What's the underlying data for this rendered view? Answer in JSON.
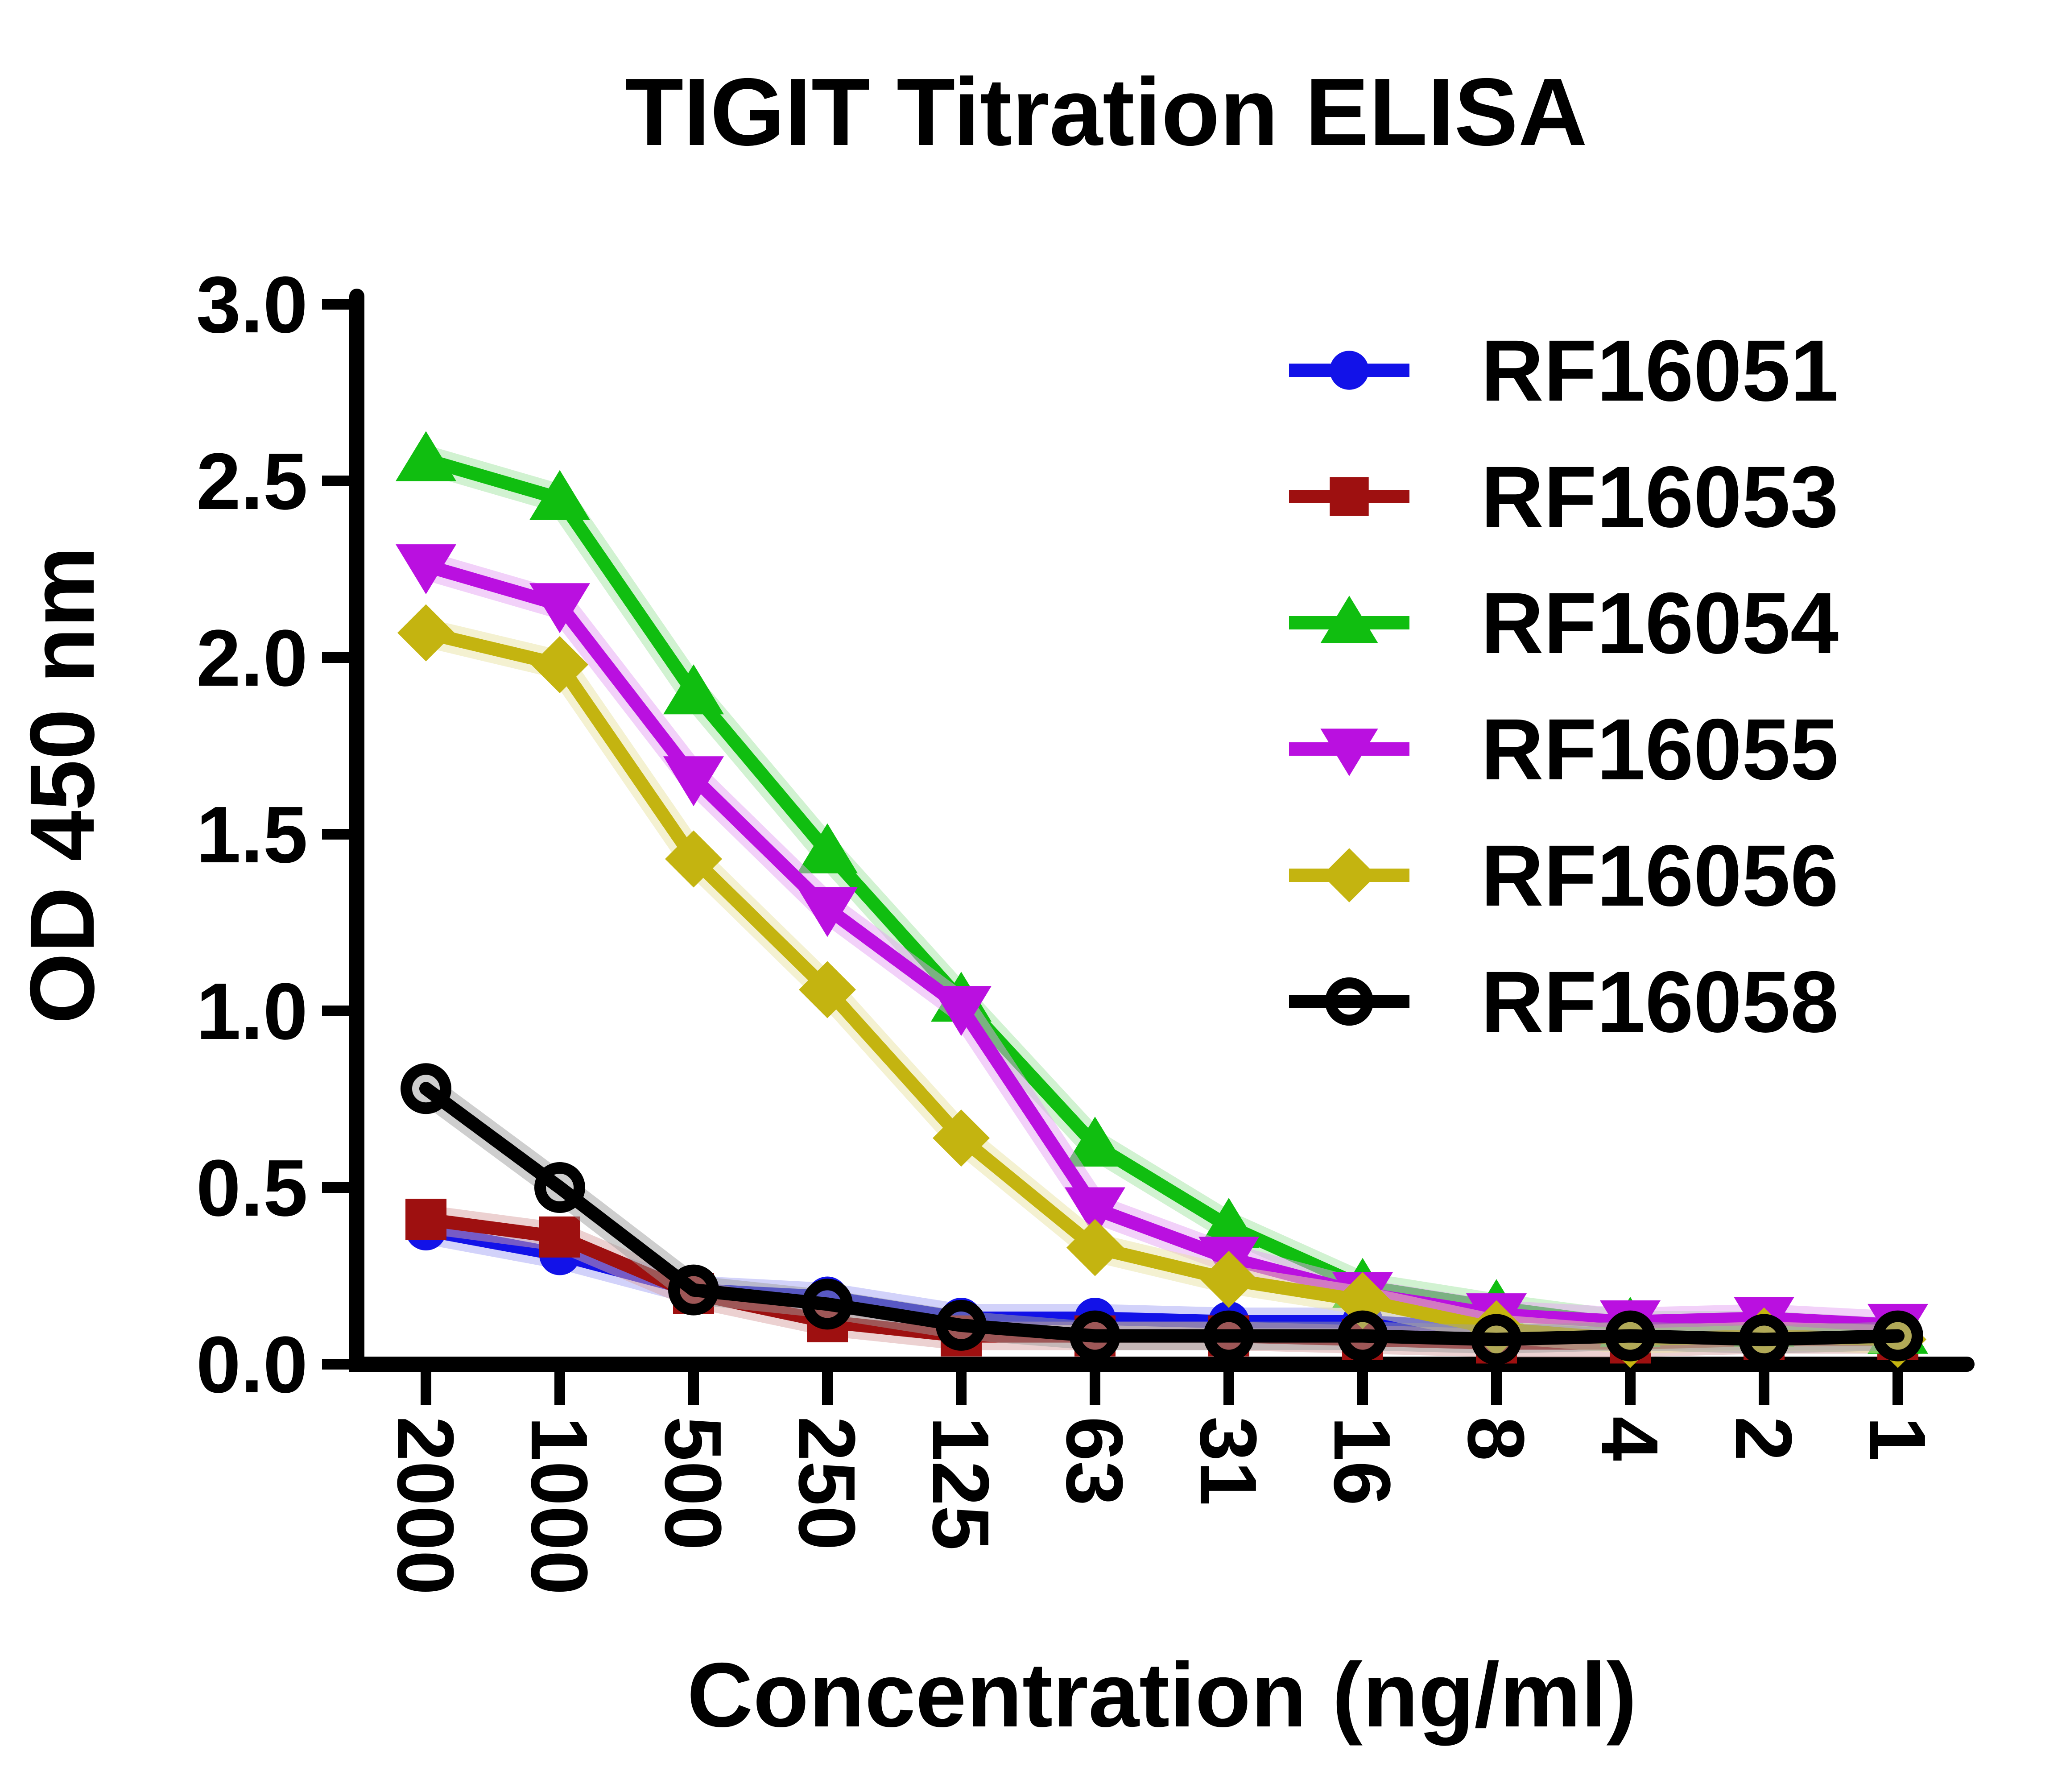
{
  "title": "TIGIT Titration ELISA",
  "chart_data": {
    "type": "line",
    "title": "TIGIT Titration ELISA",
    "xlabel": "Concentration (ng/ml)",
    "ylabel": "OD 450 nm",
    "categories": [
      "2000",
      "1000",
      "500",
      "250",
      "125",
      "63",
      "31",
      "16",
      "8",
      "4",
      "2",
      "1"
    ],
    "x_tick_rotation_deg": 90,
    "ylim": [
      0.0,
      3.0
    ],
    "y_ticks": [
      "0.0",
      "0.5",
      "1.0",
      "1.5",
      "2.0",
      "2.5",
      "3.0"
    ],
    "grid": false,
    "legend_position": "top-right",
    "axis_color": "#000000",
    "background_color": "#ffffff",
    "series": [
      {
        "name": "RF16051",
        "color": "#1212e8",
        "marker": "circle",
        "values": [
          0.38,
          0.31,
          0.21,
          0.19,
          0.13,
          0.13,
          0.12,
          0.12,
          0.1,
          0.08,
          0.08,
          0.08
        ]
      },
      {
        "name": "RF16053",
        "color": "#9e1010",
        "marker": "square",
        "values": [
          0.41,
          0.36,
          0.2,
          0.12,
          0.08,
          0.08,
          0.08,
          0.07,
          0.06,
          0.06,
          0.07,
          0.07
        ]
      },
      {
        "name": "RF16054",
        "color": "#10be10",
        "marker": "triangle-up",
        "values": [
          2.56,
          2.45,
          1.9,
          1.45,
          1.03,
          0.62,
          0.39,
          0.22,
          0.16,
          0.11,
          0.11,
          0.09
        ]
      },
      {
        "name": "RF16055",
        "color": "#ba10e0",
        "marker": "triangle-down",
        "values": [
          2.26,
          2.15,
          1.66,
          1.29,
          1.01,
          0.44,
          0.3,
          0.2,
          0.14,
          0.12,
          0.13,
          0.11
        ]
      },
      {
        "name": "RF16056",
        "color": "#c4b410",
        "marker": "diamond",
        "values": [
          2.07,
          1.98,
          1.43,
          1.06,
          0.64,
          0.33,
          0.24,
          0.18,
          0.1,
          0.07,
          0.08,
          0.07
        ]
      },
      {
        "name": "RF16058",
        "color": "#000000",
        "marker": "open-circle",
        "values": [
          0.78,
          0.5,
          0.21,
          0.17,
          0.11,
          0.08,
          0.08,
          0.08,
          0.07,
          0.08,
          0.07,
          0.08
        ]
      }
    ]
  }
}
